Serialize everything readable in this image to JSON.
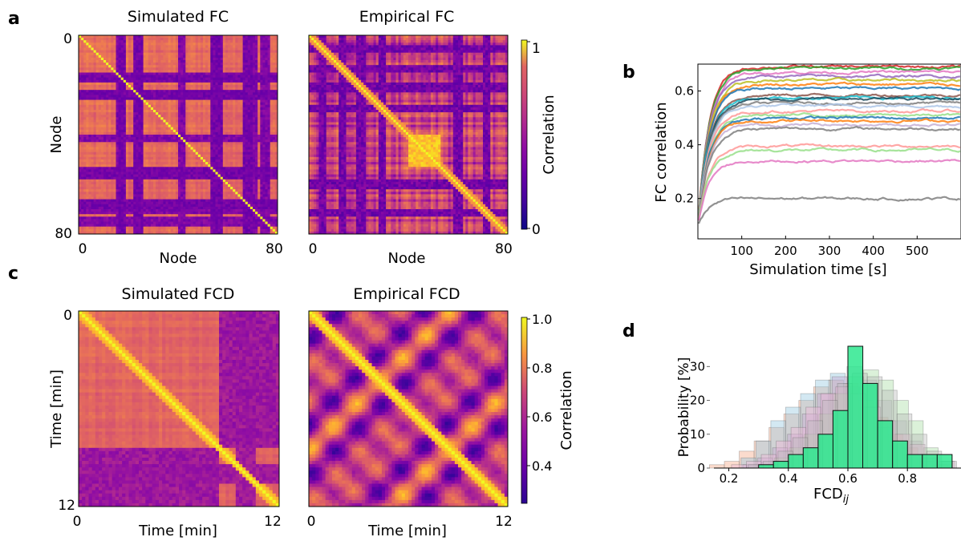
{
  "chart_data": [
    {
      "panel": "a",
      "type": "heatmap",
      "title": "Simulated FC",
      "xlabel": "Node",
      "ylabel": "Node",
      "xlim": [
        0,
        80
      ],
      "ylim": [
        0,
        80
      ],
      "x_ticks": [
        "0",
        "80"
      ],
      "y_ticks": [
        "0",
        "80"
      ],
      "n_nodes": 80,
      "low_nodes": [
        [
          16,
          18
        ],
        [
          22,
          25
        ],
        [
          53,
          57
        ],
        [
          66,
          69
        ]
      ],
      "low_nodes_rows": [
        [
          15,
          17
        ],
        [
          22,
          25
        ],
        [
          40,
          42
        ],
        [
          69,
          71
        ],
        [
          73,
          76
        ]
      ],
      "colorscale": "plasma"
    },
    {
      "panel": "a",
      "type": "heatmap",
      "title": "Empirical FC",
      "xlabel": "Node",
      "xlim": [
        0,
        80
      ],
      "x_ticks": [
        "0",
        "80"
      ],
      "n_nodes": 80,
      "low_nodes": [
        [
          4,
          6
        ],
        [
          12,
          14
        ],
        [
          19,
          22
        ],
        [
          28,
          30
        ],
        [
          58,
          61
        ],
        [
          70,
          72
        ]
      ],
      "block": [
        40,
        52
      ],
      "colorscale": "plasma"
    },
    {
      "panel": "a",
      "type": "colorbar",
      "label": "Correlation",
      "range": [
        0,
        1
      ],
      "ticks": [
        "0",
        "1"
      ]
    },
    {
      "panel": "b",
      "type": "line",
      "xlabel": "Simulation time [s]",
      "ylabel": "FC correlation",
      "xlim": [
        0,
        600
      ],
      "ylim": [
        0.05,
        0.7
      ],
      "x_ticks": [
        100,
        200,
        300,
        400,
        500
      ],
      "y_ticks": [
        0.2,
        0.4,
        0.6
      ],
      "series": [
        {
          "final": 0.69,
          "color": "#d62728"
        },
        {
          "final": 0.685,
          "color": "#2ca02c"
        },
        {
          "final": 0.67,
          "color": "#e377c2"
        },
        {
          "final": 0.655,
          "color": "#9467bd"
        },
        {
          "final": 0.64,
          "color": "#bcbd22"
        },
        {
          "final": 0.625,
          "color": "#ff7f0e"
        },
        {
          "final": 0.61,
          "color": "#1f77b4"
        },
        {
          "final": 0.585,
          "color": "#8c564b"
        },
        {
          "final": 0.575,
          "color": "#17becf"
        },
        {
          "final": 0.57,
          "color": "#1f4e5f"
        },
        {
          "final": 0.555,
          "color": "#7f7f7f"
        },
        {
          "final": 0.545,
          "color": "#aec7e8"
        },
        {
          "final": 0.525,
          "color": "#ff9896"
        },
        {
          "final": 0.51,
          "color": "#98df8a"
        },
        {
          "final": 0.5,
          "color": "#1f77b4"
        },
        {
          "final": 0.49,
          "color": "#ff7f0e"
        },
        {
          "final": 0.475,
          "color": "#c5b0d5"
        },
        {
          "final": 0.46,
          "color": "#7f7f7f"
        },
        {
          "final": 0.395,
          "color": "#ff9896"
        },
        {
          "final": 0.38,
          "color": "#98df8a"
        },
        {
          "final": 0.34,
          "color": "#e377c2"
        },
        {
          "final": 0.2,
          "color": "#7f7f7f"
        }
      ]
    },
    {
      "panel": "c",
      "type": "heatmap",
      "title": "Simulated FCD",
      "xlabel": "Time [min]",
      "ylabel": "Time [min]",
      "xlim": [
        0,
        12
      ],
      "ylim": [
        0,
        12
      ],
      "x_ticks": [
        "0",
        "12"
      ],
      "y_ticks": [
        "0",
        "12"
      ],
      "low_band_cols": [
        [
          0.78,
          0.88
        ]
      ],
      "low_band_rows": [
        [
          0.7,
          1.0
        ]
      ],
      "colorscale": "plasma"
    },
    {
      "panel": "c",
      "type": "heatmap",
      "title": "Empirical FCD",
      "xlabel": "Time [min]",
      "xlim": [
        0,
        12
      ],
      "x_ticks": [
        "0",
        "12"
      ],
      "colorscale": "plasma"
    },
    {
      "panel": "c",
      "type": "colorbar",
      "label": "Correlation",
      "range": [
        0.25,
        1.0
      ],
      "ticks": [
        "0.4",
        "0.6",
        "0.8",
        "1.0"
      ]
    },
    {
      "panel": "d",
      "type": "bar",
      "xlabel": "FCD",
      "xlabel_sub": "ij",
      "ylabel": "Probability [%]",
      "xlim": [
        0.15,
        0.98
      ],
      "ylim": [
        0,
        36
      ],
      "x_ticks": [
        0.2,
        0.4,
        0.6,
        0.8
      ],
      "y_ticks": [
        0,
        10,
        20,
        30
      ],
      "bins": [
        0.15,
        0.2,
        0.25,
        0.3,
        0.35,
        0.4,
        0.45,
        0.5,
        0.55,
        0.6,
        0.65,
        0.7,
        0.75,
        0.8,
        0.85,
        0.9,
        0.95
      ],
      "highlight_values": [
        0,
        0,
        0,
        1,
        2,
        4,
        6,
        10,
        17,
        36,
        25,
        14,
        8,
        4,
        4,
        4
      ],
      "highlight_color": "#2ee88f",
      "background_series": [
        {
          "color": "#f4a582",
          "values": [
            1,
            2,
            5,
            8,
            12,
            16,
            20,
            24,
            26,
            25,
            20,
            15,
            10,
            6,
            3,
            1
          ]
        },
        {
          "color": "#92c5de",
          "values": [
            0,
            0,
            3,
            8,
            14,
            18,
            22,
            26,
            28,
            24,
            18,
            12,
            8,
            4,
            2,
            0
          ]
        },
        {
          "color": "#c2a5cf",
          "values": [
            0,
            0,
            1,
            3,
            6,
            10,
            16,
            22,
            27,
            30,
            26,
            20,
            14,
            8,
            3,
            1
          ]
        },
        {
          "color": "#a6dba0",
          "values": [
            0,
            0,
            0,
            1,
            3,
            6,
            10,
            16,
            22,
            27,
            29,
            26,
            20,
            14,
            6,
            2
          ]
        },
        {
          "color": "#f1b6da",
          "values": [
            0,
            1,
            2,
            4,
            8,
            12,
            18,
            22,
            24,
            22,
            18,
            14,
            10,
            7,
            4,
            2
          ]
        },
        {
          "color": "#bababa",
          "values": [
            0,
            0,
            1,
            2,
            5,
            9,
            14,
            20,
            25,
            28,
            27,
            23,
            16,
            10,
            5,
            2
          ]
        }
      ]
    }
  ],
  "panels": {
    "a": "a",
    "b": "b",
    "c": "c",
    "d": "d"
  }
}
